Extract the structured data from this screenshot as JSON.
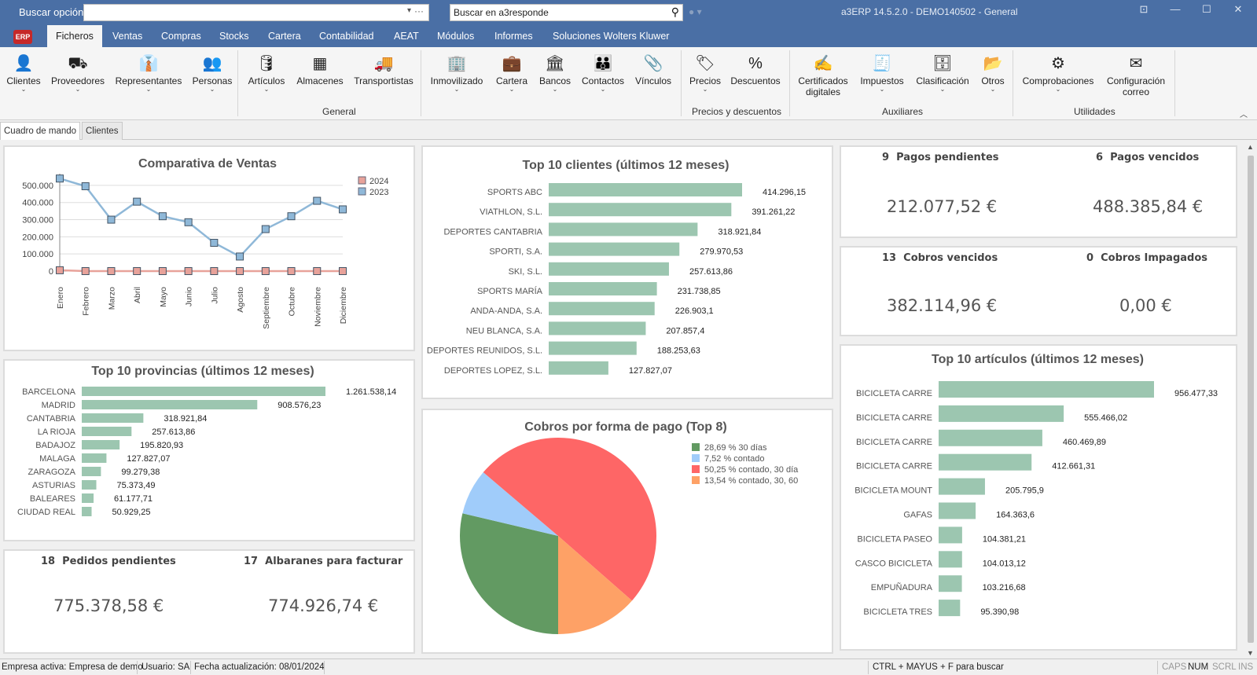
{
  "titlebar": {
    "search_label": "Buscar opción:",
    "search_value": "",
    "a3_search_placeholder": "Buscar en a3responde",
    "app_title": "a3ERP 14.5.2.0 - DEMO140502 - General",
    "minimize": "—",
    "maximize": "☐",
    "close": "✕",
    "pin": "⊡"
  },
  "menu": {
    "logo": "ERP",
    "items": [
      "Ficheros",
      "Ventas",
      "Compras",
      "Stocks",
      "Cartera",
      "Contabilidad",
      "AEAT",
      "Módulos",
      "Informes",
      "Soluciones Wolters Kluwer"
    ],
    "active_index": 0
  },
  "ribbon": {
    "buttons": [
      {
        "label": "Clientes",
        "icon": "user-icon",
        "dropdown": true
      },
      {
        "label": "Proveedores",
        "icon": "supplier-icon",
        "dropdown": true
      },
      {
        "label": "Representantes",
        "icon": "representative-icon",
        "dropdown": true
      },
      {
        "label": "Personas",
        "icon": "people-icon",
        "dropdown": true
      },
      {
        "label": "Artículos",
        "icon": "articles-icon",
        "dropdown": true
      },
      {
        "label": "Almacenes",
        "icon": "warehouse-icon",
        "dropdown": false
      },
      {
        "label": "Transportistas",
        "icon": "truck-icon",
        "dropdown": false
      },
      {
        "label": "Inmovilizado",
        "icon": "building-icon",
        "dropdown": true
      },
      {
        "label": "Cartera",
        "icon": "briefcase-icon",
        "dropdown": true
      },
      {
        "label": "Bancos",
        "icon": "bank-icon",
        "dropdown": true
      },
      {
        "label": "Contactos",
        "icon": "contacts-icon",
        "dropdown": true
      },
      {
        "label": "Vínculos",
        "icon": "paperclip-icon",
        "dropdown": false
      },
      {
        "label": "Precios",
        "icon": "price-tag-icon",
        "dropdown": true
      },
      {
        "label": "Descuentos",
        "icon": "discount-icon",
        "dropdown": false
      },
      {
        "label": "Certificados",
        "label2": "digitales",
        "icon": "certificate-icon",
        "dropdown": true
      },
      {
        "label": "Impuestos",
        "icon": "tax-icon",
        "dropdown": true
      },
      {
        "label": "Clasificación",
        "icon": "archive-icon",
        "dropdown": true
      },
      {
        "label": "Otros",
        "icon": "folder-icon",
        "dropdown": true
      },
      {
        "label": "Comprobaciones",
        "icon": "gears-icon",
        "dropdown": true
      },
      {
        "label": "Configuración",
        "label2": "correo",
        "icon": "mail-icon",
        "dropdown": false
      }
    ],
    "groups": [
      "General",
      "Precios y descuentos",
      "Auxiliares",
      "Utilidades"
    ]
  },
  "tabs": [
    "Cuadro de mando",
    "Clientes"
  ],
  "dashboard": {
    "pedidos": {
      "count": "18",
      "label": "Pedidos pendientes",
      "amount": "775.378,58 €"
    },
    "albaranes": {
      "count": "17",
      "label": "Albaranes para facturar",
      "amount": "774.926,74 €"
    },
    "pagos_pend": {
      "count": "9",
      "label": "Pagos pendientes",
      "amount": "212.077,52 €"
    },
    "pagos_venc": {
      "count": "6",
      "label": "Pagos vencidos",
      "amount": "488.385,84 €"
    },
    "cobros_venc": {
      "count": "13",
      "label": "Cobros vencidos",
      "amount": "382.114,96 €"
    },
    "cobros_imp": {
      "count": "0",
      "label": "Cobros Impagados",
      "amount": "0,00 €"
    }
  },
  "chart_data": [
    {
      "type": "line",
      "title": "Comparativa de Ventas",
      "categories": [
        "Enero",
        "Febrero",
        "Marzo",
        "Abril",
        "Mayo",
        "Junio",
        "Julio",
        "Agosto",
        "Septiembre",
        "Octubre",
        "Noviembre",
        "Diciembre"
      ],
      "y_ticks": [
        "500.000",
        "400.000",
        "300.000",
        "200.000",
        "100.000",
        "0"
      ],
      "ylim": [
        0,
        550000
      ],
      "legend": "top-right",
      "series": [
        {
          "name": "2024",
          "color": "#e8a29a",
          "values": [
            5000,
            0,
            0,
            0,
            0,
            0,
            0,
            0,
            0,
            0,
            0,
            0
          ]
        },
        {
          "name": "2023",
          "color": "#8fb8d8",
          "values": [
            540000,
            495000,
            300000,
            405000,
            320000,
            285000,
            165000,
            85000,
            245000,
            320000,
            410000,
            360000
          ]
        }
      ]
    },
    {
      "type": "bar",
      "title": "Top 10 clientes (últimos 12 meses)",
      "categories": [
        "SPORTS ABC",
        "VIATHLON, S.L.",
        "DEPORTES CANTABRIA",
        "SPORTI, S.A.",
        "SKI, S.L.",
        "SPORTS MARÍA",
        "ANDA-ANDA, S.A.",
        "NEU BLANCA, S.A.",
        "DEPORTES REUNIDOS, S.L.",
        "DEPORTES LOPEZ, S.L."
      ],
      "values": [
        414296.15,
        391261.22,
        318921.84,
        279970.53,
        257613.86,
        231738.85,
        226903.1,
        207857.4,
        188253.63,
        127827.07
      ],
      "labels": [
        "414.296,15",
        "391.261,22",
        "318.921,84",
        "279.970,53",
        "257.613,86",
        "231.738,85",
        "226.903,1",
        "207.857,4",
        "188.253,63",
        "127.827,07"
      ],
      "color": "#9cc6b0"
    },
    {
      "type": "bar",
      "title": "Top 10 provincias (últimos 12 meses)",
      "categories": [
        "BARCELONA",
        "MADRID",
        "CANTABRIA",
        "LA RIOJA",
        "BADAJOZ",
        "MALAGA",
        "ZARAGOZA",
        "ASTURIAS",
        "BALEARES",
        "CIUDAD REAL"
      ],
      "values": [
        1261538.14,
        908576.23,
        318921.84,
        257613.86,
        195820.93,
        127827.07,
        99279.38,
        75373.49,
        61177.71,
        50929.25
      ],
      "labels": [
        "1.261.538,14",
        "908.576,23",
        "318.921,84",
        "257.613,86",
        "195.820,93",
        "127.827,07",
        "99.279,38",
        "75.373,49",
        "61.177,71",
        "50.929,25"
      ],
      "color": "#9cc6b0"
    },
    {
      "type": "pie",
      "title": "Cobros por forma de pago (Top 8)",
      "slices": [
        {
          "label": "28,69 % 30 días",
          "value": 28.69,
          "color": "#629a62"
        },
        {
          "label": "7,52 % contado",
          "value": 7.52,
          "color": "#a0ccfa"
        },
        {
          "label": "50,25 % contado, 30 día",
          "value": 50.25,
          "color": "#fe6666"
        },
        {
          "label": "13,54 % contado, 30, 60",
          "value": 13.54,
          "color": "#fea166"
        }
      ]
    },
    {
      "type": "bar",
      "title": "Top 10 artículos (últimos 12 meses)",
      "categories": [
        "BICICLETA CARRE",
        "BICICLETA CARRE",
        "BICICLETA CARRE",
        "BICICLETA CARRE",
        "BICICLETA MOUNT",
        "GAFAS",
        "BICICLETA PASEO",
        "CASCO BICICLETA",
        "EMPUÑADURA",
        "BICICLETA TRES"
      ],
      "values": [
        956477.33,
        555466.02,
        460469.89,
        412661.31,
        205795.9,
        164363.6,
        104381.21,
        104013.12,
        103216.68,
        95390.98
      ],
      "labels": [
        "956.477,33",
        "555.466,02",
        "460.469,89",
        "412.661,31",
        "205.795,9",
        "164.363,6",
        "104.381,21",
        "104.013,12",
        "103.216,68",
        "95.390,98"
      ],
      "color": "#9cc6b0"
    }
  ],
  "status": {
    "empresa": "Empresa activa: Empresa de demo",
    "usuario": "Usuario: SA",
    "fecha": "Fecha actualización: 08/01/2024",
    "shortcut": "CTRL + MAYUS + F para buscar",
    "caps": "CAPS",
    "num": "NUM",
    "scrl": "SCRL",
    "ins": "INS"
  }
}
